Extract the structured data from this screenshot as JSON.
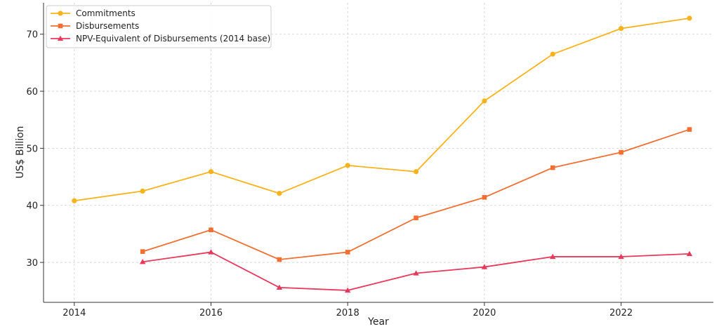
{
  "chart_data": {
    "type": "line",
    "title": "",
    "xlabel": "Year",
    "ylabel": "US$ Billion",
    "xlim": [
      2013.55,
      2023.35
    ],
    "ylim": [
      23,
      75.5
    ],
    "x_ticks": [
      2014,
      2016,
      2018,
      2020,
      2022
    ],
    "y_ticks": [
      30,
      40,
      50,
      60,
      70
    ],
    "grid": true,
    "legend_position": "top-left",
    "series": [
      {
        "name": "Commitments",
        "color": "#f8b31c",
        "marker": "circle",
        "x": [
          2014,
          2015,
          2016,
          2017,
          2018,
          2019,
          2020,
          2021,
          2022,
          2023
        ],
        "values": [
          40.8,
          42.5,
          45.9,
          42.1,
          47.0,
          45.9,
          58.3,
          66.5,
          71.0,
          72.8
        ]
      },
      {
        "name": "Disbursements",
        "color": "#f26f32",
        "marker": "square",
        "x": [
          2015,
          2016,
          2017,
          2018,
          2019,
          2020,
          2021,
          2022,
          2023
        ],
        "values": [
          31.9,
          35.7,
          30.5,
          31.8,
          37.8,
          41.4,
          46.6,
          49.3,
          53.3
        ]
      },
      {
        "name": "NPV-Equivalent of Disbursements (2014 base)",
        "color": "#e8395c",
        "marker": "triangle",
        "x": [
          2015,
          2016,
          2017,
          2018,
          2019,
          2020,
          2021,
          2022,
          2023
        ],
        "values": [
          30.1,
          31.8,
          25.6,
          25.1,
          28.1,
          29.2,
          31.0,
          31.0,
          31.5
        ]
      }
    ]
  }
}
